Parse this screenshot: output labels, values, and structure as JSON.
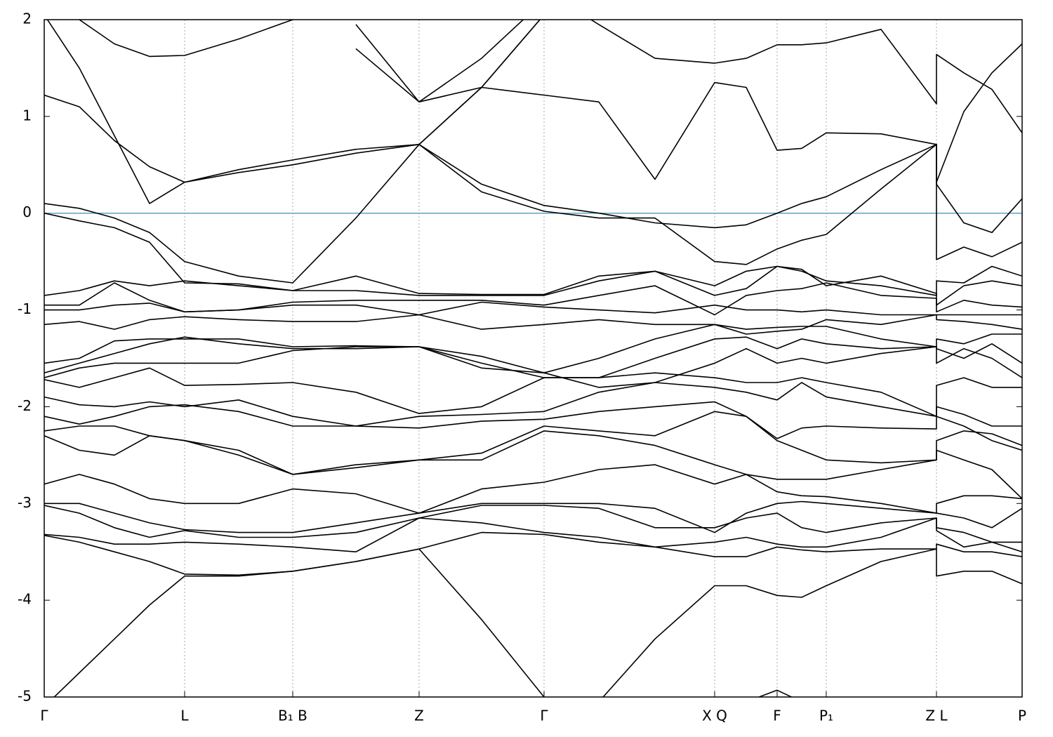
{
  "chart_data": {
    "type": "line",
    "x": [
      0,
      50,
      100,
      150,
      200,
      277,
      354,
      444,
      534,
      623,
      712,
      790,
      870,
      955,
      1000,
      1044,
      1079,
      1114,
      1192,
      1271,
      1271,
      1310,
      1350,
      1393
    ],
    "xlim": [
      0,
      1393
    ],
    "xticks": [
      {
        "value": 0,
        "label": "Γ"
      },
      {
        "value": 200,
        "label": "L"
      },
      {
        "value": 354,
        "label": "B₁ B"
      },
      {
        "value": 534,
        "label": "Z"
      },
      {
        "value": 712,
        "label": "Γ"
      },
      {
        "value": 955,
        "label": "X Q"
      },
      {
        "value": 1044,
        "label": "F"
      },
      {
        "value": 1114,
        "label": "P₁"
      },
      {
        "value": 1271,
        "label": "Z L"
      },
      {
        "value": 1393,
        "label": "P"
      }
    ],
    "ylim": [
      -5,
      2
    ],
    "yticks": [
      -5,
      -4,
      -3,
      -2,
      -1,
      0,
      1,
      2
    ],
    "grid": "x",
    "reference_line": {
      "value": 0,
      "color": "#5aa6bf"
    },
    "series": [
      {
        "color": "#000000",
        "values": [
          1.22,
          1.1,
          0.75,
          0.48,
          0.32,
          0.42,
          0.5,
          0.62,
          0.71,
          1.3,
          2.05,
          null,
          null,
          null,
          null,
          null,
          null,
          null,
          null,
          null,
          null,
          null,
          null,
          null
        ]
      },
      {
        "color": "#000000",
        "values": [
          2.05,
          1.5,
          0.8,
          0.1,
          0.32,
          0.45,
          0.55,
          0.66,
          0.71,
          1.3,
          2.05,
          null,
          null,
          null,
          null,
          null,
          null,
          null,
          null,
          null,
          null,
          null,
          null,
          null
        ]
      },
      {
        "color": "#000000",
        "values": [
          null,
          2.0,
          1.75,
          1.62,
          1.63,
          1.8,
          2.0,
          null,
          null,
          null,
          null,
          null,
          null,
          null,
          null,
          null,
          null,
          null,
          null,
          null,
          null,
          null,
          null,
          null
        ]
      },
      {
        "color": "#000000",
        "values": [
          null,
          null,
          null,
          null,
          null,
          null,
          null,
          1.7,
          1.15,
          1.3,
          1.22,
          1.15,
          0.35,
          1.35,
          1.3,
          0.65,
          0.67,
          0.83,
          0.82,
          0.71,
          0.32,
          1.05,
          1.45,
          1.75
        ]
      },
      {
        "color": "#000000",
        "values": [
          null,
          null,
          null,
          null,
          null,
          null,
          null,
          null,
          null,
          null,
          2.3,
          1.95,
          1.6,
          1.55,
          1.6,
          1.74,
          1.74,
          1.76,
          1.9,
          1.13,
          1.64,
          1.45,
          1.28,
          0.83
        ]
      },
      {
        "color": "#000000",
        "values": [
          null,
          null,
          null,
          null,
          null,
          null,
          null,
          1.95,
          1.15,
          1.6,
          2.2,
          null,
          null,
          null,
          null,
          null,
          null,
          null,
          null,
          null,
          null,
          null,
          null,
          null
        ]
      },
      {
        "color": "#000000",
        "values": [
          0.1,
          0.05,
          -0.05,
          -0.2,
          -0.5,
          -0.65,
          -0.72,
          -0.05,
          0.71,
          0.22,
          0.02,
          -0.05,
          -0.05,
          -0.5,
          -0.53,
          -0.37,
          -0.28,
          -0.22,
          0.25,
          0.71,
          -0.48,
          -0.35,
          -0.45,
          -0.3
        ]
      },
      {
        "color": "#000000",
        "values": [
          0.0,
          -0.08,
          -0.15,
          -0.3,
          -0.72,
          -0.73,
          -0.8,
          -0.8,
          -0.85,
          -0.85,
          -0.85,
          -0.7,
          -0.6,
          -0.75,
          -0.6,
          -0.55,
          -0.6,
          -0.7,
          -0.75,
          -0.85,
          -0.7,
          -0.72,
          -0.55,
          -0.65
        ]
      },
      {
        "color": "#000000",
        "values": [
          null,
          null,
          null,
          null,
          null,
          null,
          null,
          null,
          0.71,
          0.3,
          0.08,
          0.0,
          -0.1,
          -0.15,
          -0.12,
          0.0,
          0.1,
          0.17,
          0.45,
          0.71,
          0.3,
          -0.1,
          -0.2,
          0.15
        ]
      },
      {
        "color": "#000000",
        "values": [
          -0.85,
          -0.8,
          -0.7,
          -0.75,
          -0.7,
          -0.75,
          -0.8,
          -0.65,
          -0.83,
          -0.84,
          -0.84,
          -0.65,
          -0.6,
          -0.85,
          -0.78,
          -0.55,
          -0.58,
          -0.75,
          -0.65,
          -0.83,
          -0.95,
          -0.75,
          -0.7,
          -0.75
        ]
      },
      {
        "color": "#000000",
        "values": [
          -0.95,
          -0.95,
          -0.72,
          -0.9,
          -1.02,
          -1.0,
          -0.92,
          -0.9,
          -0.9,
          -0.9,
          -0.95,
          -0.85,
          -0.75,
          -1.05,
          -0.85,
          -0.8,
          -0.78,
          -0.72,
          -0.85,
          -0.88,
          -1.02,
          -0.9,
          -0.95,
          -0.97
        ]
      },
      {
        "color": "#000000",
        "values": [
          -1.0,
          -1.0,
          -0.95,
          -0.93,
          -1.02,
          -1.0,
          -0.95,
          -0.95,
          -1.05,
          -0.92,
          -0.97,
          -1.0,
          -1.03,
          -0.95,
          -1.0,
          -1.0,
          -1.02,
          -1.0,
          -1.05,
          -1.05,
          -1.05,
          -1.05,
          -1.05,
          -1.05
        ]
      },
      {
        "color": "#000000",
        "values": [
          -1.15,
          -1.12,
          -1.2,
          -1.1,
          -1.07,
          -1.1,
          -1.12,
          -1.12,
          -1.05,
          -1.2,
          -1.15,
          -1.1,
          -1.15,
          -1.15,
          -1.25,
          -1.22,
          -1.2,
          -1.1,
          -1.15,
          -1.05,
          -1.1,
          -1.12,
          -1.15,
          -1.2
        ]
      },
      {
        "color": "#000000",
        "values": [
          -1.55,
          -1.5,
          -1.32,
          -1.3,
          -1.3,
          -1.3,
          -1.38,
          -1.37,
          -1.38,
          -1.48,
          -1.65,
          -1.5,
          -1.3,
          -1.15,
          -1.2,
          -1.18,
          -1.17,
          -1.17,
          -1.3,
          -1.38,
          -1.3,
          -1.35,
          -1.25,
          -1.25
        ]
      },
      {
        "color": "#000000",
        "values": [
          -1.65,
          -1.55,
          -1.45,
          -1.35,
          -1.28,
          -1.35,
          -1.4,
          -1.4,
          -1.38,
          -1.55,
          -1.7,
          -1.7,
          -1.5,
          -1.3,
          -1.28,
          -1.4,
          -1.3,
          -1.35,
          -1.4,
          -1.38,
          -1.4,
          -1.5,
          -1.35,
          -1.55
        ]
      },
      {
        "color": "#000000",
        "values": [
          -1.7,
          -1.6,
          -1.55,
          -1.55,
          -1.55,
          -1.55,
          -1.42,
          -1.38,
          -1.38,
          -1.6,
          -1.65,
          -1.8,
          -1.75,
          -1.55,
          -1.4,
          -1.55,
          -1.5,
          -1.55,
          -1.45,
          -1.38,
          -1.55,
          -1.4,
          -1.5,
          -1.7
        ]
      },
      {
        "color": "#000000",
        "values": [
          -1.72,
          -1.8,
          -1.7,
          -1.6,
          -1.78,
          -1.77,
          -1.75,
          -1.85,
          -2.07,
          -2.0,
          -1.7,
          -1.7,
          -1.65,
          -1.7,
          -1.75,
          -1.75,
          -1.7,
          -1.75,
          -1.85,
          -2.1,
          -1.78,
          -1.7,
          -1.8,
          -1.8
        ]
      },
      {
        "color": "#000000",
        "values": [
          -1.9,
          -1.98,
          -2.0,
          -1.95,
          -2.0,
          -1.93,
          -2.1,
          -2.2,
          -2.1,
          -2.08,
          -2.05,
          -1.85,
          -1.75,
          -1.8,
          -1.85,
          -1.93,
          -1.75,
          -1.9,
          -2.0,
          -2.1,
          -2.0,
          -2.08,
          -2.2,
          -2.2
        ]
      },
      {
        "color": "#000000",
        "values": [
          -2.1,
          -2.18,
          -2.1,
          -2.0,
          -1.98,
          -2.05,
          -2.2,
          -2.2,
          -2.22,
          -2.15,
          -2.13,
          -2.05,
          -2.0,
          -1.95,
          -2.1,
          -2.33,
          -2.22,
          -2.2,
          -2.22,
          -2.23,
          -2.1,
          -2.2,
          -2.35,
          -2.45
        ]
      },
      {
        "color": "#000000",
        "values": [
          -2.25,
          -2.2,
          -2.2,
          -2.3,
          -2.35,
          -2.45,
          -2.7,
          -2.6,
          -2.55,
          -2.48,
          -2.2,
          -2.25,
          -2.3,
          -2.05,
          -2.1,
          -2.35,
          -2.45,
          -2.55,
          -2.58,
          -2.55,
          -2.35,
          -2.25,
          -2.28,
          -2.4
        ]
      },
      {
        "color": "#000000",
        "values": [
          -2.3,
          -2.45,
          -2.5,
          -2.3,
          -2.35,
          -2.5,
          -2.7,
          -2.63,
          -2.55,
          -2.55,
          -2.25,
          -2.3,
          -2.4,
          -2.6,
          -2.7,
          -2.75,
          -2.75,
          -2.75,
          -2.65,
          -2.55,
          -2.45,
          -2.55,
          -2.65,
          -2.95
        ]
      },
      {
        "color": "#000000",
        "values": [
          -2.8,
          -2.7,
          -2.8,
          -2.95,
          -3.0,
          -3.0,
          -2.85,
          -2.9,
          -3.1,
          -2.85,
          -2.78,
          -2.65,
          -2.6,
          -2.8,
          -2.7,
          -2.88,
          -2.92,
          -2.93,
          -3.0,
          -3.1,
          -3.0,
          -2.92,
          -2.92,
          -2.95
        ]
      },
      {
        "color": "#000000",
        "values": [
          -3.0,
          -3.0,
          -3.1,
          -3.2,
          -3.27,
          -3.3,
          -3.3,
          -3.2,
          -3.1,
          -3.0,
          -3.0,
          -3.0,
          -3.05,
          -3.3,
          -3.1,
          -3.0,
          -2.98,
          -3.0,
          -3.05,
          -3.1,
          -3.1,
          -3.15,
          -3.25,
          -3.05
        ]
      },
      {
        "color": "#000000",
        "values": [
          -3.02,
          -3.1,
          -3.25,
          -3.35,
          -3.28,
          -3.35,
          -3.35,
          -3.3,
          -3.15,
          -3.02,
          -3.02,
          -3.05,
          -3.25,
          -3.25,
          -3.15,
          -3.1,
          -3.25,
          -3.3,
          -3.2,
          -3.15,
          -3.25,
          -3.3,
          -3.4,
          -3.4
        ]
      },
      {
        "color": "#000000",
        "values": [
          -3.32,
          -3.35,
          -3.42,
          -3.42,
          -3.4,
          -3.42,
          -3.45,
          -3.5,
          -3.15,
          -3.2,
          -3.3,
          -3.35,
          -3.45,
          -3.4,
          -3.35,
          -3.42,
          -3.45,
          -3.45,
          -3.35,
          -3.15,
          -3.28,
          -3.45,
          -3.4,
          -3.5
        ]
      },
      {
        "color": "#000000",
        "values": [
          -3.33,
          -3.4,
          -3.5,
          -3.6,
          -3.73,
          -3.74,
          -3.7,
          -3.6,
          -3.47,
          -3.3,
          -3.32,
          -3.4,
          -3.45,
          -3.55,
          -3.55,
          -3.45,
          -3.48,
          -3.5,
          -3.47,
          -3.47,
          -3.42,
          -3.5,
          -3.5,
          -3.55
        ]
      },
      {
        "color": "#000000",
        "values": [
          -5.1,
          -4.75,
          -4.4,
          -4.05,
          -3.75,
          -3.75,
          -3.7,
          -3.6,
          -3.47,
          -4.2,
          -5.0,
          -5.05,
          -4.4,
          -3.85,
          -3.85,
          -3.95,
          -3.97,
          -3.85,
          -3.6,
          -3.47,
          -3.75,
          -3.7,
          -3.7,
          -3.83
        ]
      },
      {
        "color": "#000000",
        "values": [
          null,
          null,
          null,
          null,
          null,
          null,
          null,
          null,
          null,
          null,
          null,
          null,
          null,
          null,
          -5.05,
          -4.93,
          -5.05,
          null,
          null,
          null,
          null,
          null,
          null,
          null
        ]
      }
    ]
  }
}
